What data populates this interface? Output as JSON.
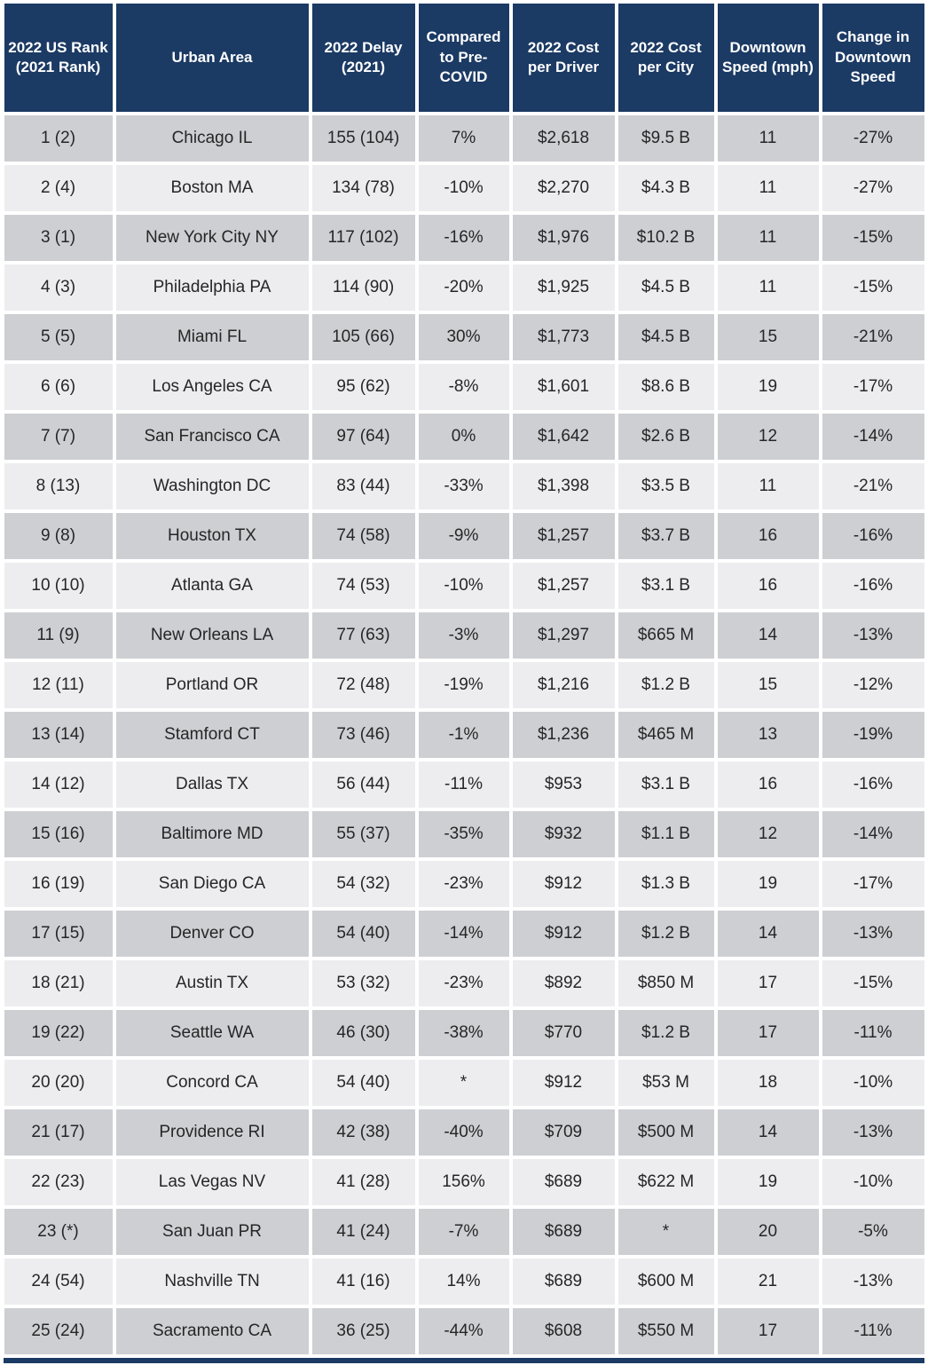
{
  "colors": {
    "header_bg": "#1b3a64",
    "header_text": "#ffffff",
    "row_odd_bg": "#cdcfd3",
    "row_even_bg": "#ededf0",
    "cell_text": "#262626",
    "grid_gap": "#ffffff"
  },
  "chart_data": {
    "type": "table",
    "columns": [
      {
        "key": "rank",
        "label": "2022 US Rank (2021 Rank)"
      },
      {
        "key": "area",
        "label": "Urban Area"
      },
      {
        "key": "delay",
        "label": "2022 Delay (2021)"
      },
      {
        "key": "covid",
        "label": "Compared to Pre-COVID"
      },
      {
        "key": "cost_driver",
        "label": "2022 Cost per Driver"
      },
      {
        "key": "cost_city",
        "label": "2022 Cost per City"
      },
      {
        "key": "speed",
        "label": "Downtown Speed (mph)"
      },
      {
        "key": "speed_change",
        "label": "Change in Downtown Speed"
      }
    ],
    "rows": [
      {
        "rank": "1 (2)",
        "area": "Chicago IL",
        "delay": "155 (104)",
        "covid": "7%",
        "cost_driver": "$2,618",
        "cost_city": "$9.5 B",
        "speed": "11",
        "speed_change": "-27%"
      },
      {
        "rank": "2 (4)",
        "area": "Boston MA",
        "delay": "134 (78)",
        "covid": "-10%",
        "cost_driver": "$2,270",
        "cost_city": "$4.3 B",
        "speed": "11",
        "speed_change": "-27%"
      },
      {
        "rank": "3 (1)",
        "area": "New York City NY",
        "delay": "117 (102)",
        "covid": "-16%",
        "cost_driver": "$1,976",
        "cost_city": "$10.2 B",
        "speed": "11",
        "speed_change": "-15%"
      },
      {
        "rank": "4 (3)",
        "area": "Philadelphia PA",
        "delay": "114 (90)",
        "covid": "-20%",
        "cost_driver": "$1,925",
        "cost_city": "$4.5 B",
        "speed": "11",
        "speed_change": "-15%"
      },
      {
        "rank": "5 (5)",
        "area": "Miami FL",
        "delay": "105 (66)",
        "covid": "30%",
        "cost_driver": "$1,773",
        "cost_city": "$4.5 B",
        "speed": "15",
        "speed_change": "-21%"
      },
      {
        "rank": "6 (6)",
        "area": "Los Angeles CA",
        "delay": "95 (62)",
        "covid": "-8%",
        "cost_driver": "$1,601",
        "cost_city": "$8.6 B",
        "speed": "19",
        "speed_change": "-17%"
      },
      {
        "rank": "7 (7)",
        "area": "San Francisco CA",
        "delay": "97 (64)",
        "covid": "0%",
        "cost_driver": "$1,642",
        "cost_city": "$2.6 B",
        "speed": "12",
        "speed_change": "-14%"
      },
      {
        "rank": "8 (13)",
        "area": "Washington DC",
        "delay": "83 (44)",
        "covid": "-33%",
        "cost_driver": "$1,398",
        "cost_city": "$3.5 B",
        "speed": "11",
        "speed_change": "-21%"
      },
      {
        "rank": "9 (8)",
        "area": "Houston TX",
        "delay": "74 (58)",
        "covid": "-9%",
        "cost_driver": "$1,257",
        "cost_city": "$3.7 B",
        "speed": "16",
        "speed_change": "-16%"
      },
      {
        "rank": "10 (10)",
        "area": "Atlanta GA",
        "delay": "74 (53)",
        "covid": "-10%",
        "cost_driver": "$1,257",
        "cost_city": "$3.1 B",
        "speed": "16",
        "speed_change": "-16%"
      },
      {
        "rank": "11 (9)",
        "area": "New Orleans LA",
        "delay": "77 (63)",
        "covid": "-3%",
        "cost_driver": "$1,297",
        "cost_city": "$665 M",
        "speed": "14",
        "speed_change": "-13%"
      },
      {
        "rank": "12 (11)",
        "area": "Portland OR",
        "delay": "72 (48)",
        "covid": "-19%",
        "cost_driver": "$1,216",
        "cost_city": "$1.2 B",
        "speed": "15",
        "speed_change": "-12%"
      },
      {
        "rank": "13 (14)",
        "area": "Stamford CT",
        "delay": "73 (46)",
        "covid": "-1%",
        "cost_driver": "$1,236",
        "cost_city": "$465 M",
        "speed": "13",
        "speed_change": "-19%"
      },
      {
        "rank": "14 (12)",
        "area": "Dallas TX",
        "delay": "56 (44)",
        "covid": "-11%",
        "cost_driver": "$953",
        "cost_city": "$3.1 B",
        "speed": "16",
        "speed_change": "-16%"
      },
      {
        "rank": "15 (16)",
        "area": "Baltimore MD",
        "delay": "55 (37)",
        "covid": "-35%",
        "cost_driver": "$932",
        "cost_city": "$1.1 B",
        "speed": "12",
        "speed_change": "-14%"
      },
      {
        "rank": "16 (19)",
        "area": "San Diego CA",
        "delay": "54 (32)",
        "covid": "-23%",
        "cost_driver": "$912",
        "cost_city": "$1.3 B",
        "speed": "19",
        "speed_change": "-17%"
      },
      {
        "rank": "17 (15)",
        "area": "Denver CO",
        "delay": "54 (40)",
        "covid": "-14%",
        "cost_driver": "$912",
        "cost_city": "$1.2 B",
        "speed": "14",
        "speed_change": "-13%"
      },
      {
        "rank": "18 (21)",
        "area": "Austin TX",
        "delay": "53 (32)",
        "covid": "-23%",
        "cost_driver": "$892",
        "cost_city": "$850 M",
        "speed": "17",
        "speed_change": "-15%"
      },
      {
        "rank": "19 (22)",
        "area": "Seattle WA",
        "delay": "46 (30)",
        "covid": "-38%",
        "cost_driver": "$770",
        "cost_city": "$1.2 B",
        "speed": "17",
        "speed_change": "-11%"
      },
      {
        "rank": "20 (20)",
        "area": "Concord CA",
        "delay": "54 (40)",
        "covid": "*",
        "cost_driver": "$912",
        "cost_city": "$53 M",
        "speed": "18",
        "speed_change": "-10%"
      },
      {
        "rank": "21 (17)",
        "area": "Providence RI",
        "delay": "42 (38)",
        "covid": "-40%",
        "cost_driver": "$709",
        "cost_city": "$500 M",
        "speed": "14",
        "speed_change": "-13%"
      },
      {
        "rank": "22 (23)",
        "area": "Las Vegas NV",
        "delay": "41 (28)",
        "covid": "156%",
        "cost_driver": "$689",
        "cost_city": "$622 M",
        "speed": "19",
        "speed_change": "-10%"
      },
      {
        "rank": "23 (*)",
        "area": "San Juan PR",
        "delay": "41 (24)",
        "covid": "-7%",
        "cost_driver": "$689",
        "cost_city": "*",
        "speed": "20",
        "speed_change": "-5%"
      },
      {
        "rank": "24 (54)",
        "area": "Nashville TN",
        "delay": "41 (16)",
        "covid": "14%",
        "cost_driver": "$689",
        "cost_city": "$600 M",
        "speed": "21",
        "speed_change": "-13%"
      },
      {
        "rank": "25 (24)",
        "area": "Sacramento CA",
        "delay": "36 (25)",
        "covid": "-44%",
        "cost_driver": "$608",
        "cost_city": "$550 M",
        "speed": "17",
        "speed_change": "-11%"
      }
    ]
  }
}
